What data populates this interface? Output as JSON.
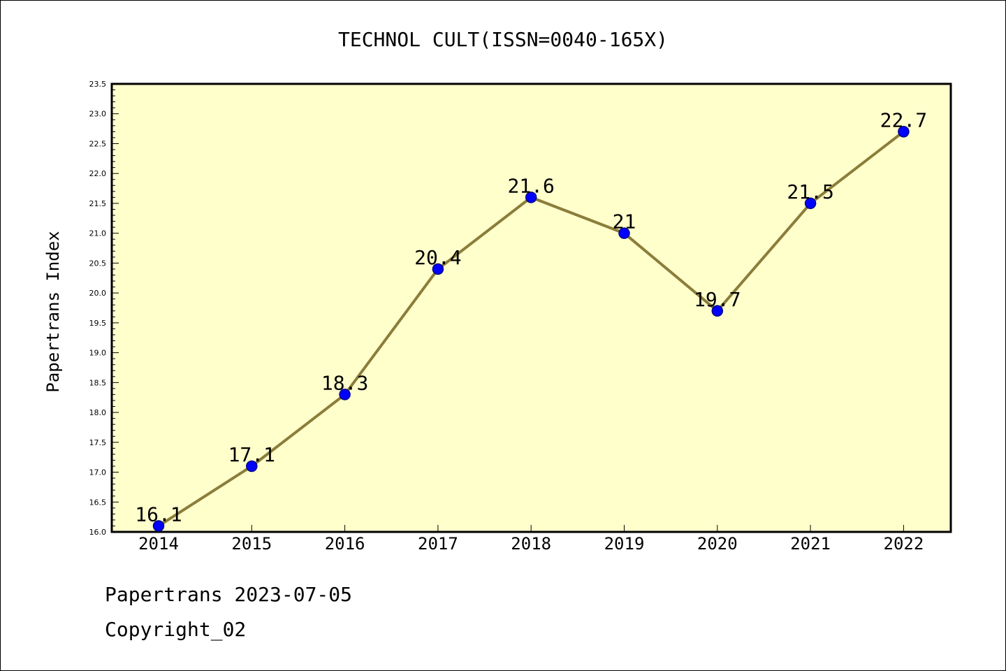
{
  "chart_data": {
    "type": "line",
    "title": "TECHNOL CULT(ISSN=0040-165X)",
    "xlabel": "",
    "ylabel": "Papertrans Index",
    "categories": [
      "2014",
      "2015",
      "2016",
      "2017",
      "2018",
      "2019",
      "2020",
      "2021",
      "2022"
    ],
    "series": [
      {
        "values": [
          16.1,
          17.1,
          18.3,
          20.4,
          21.6,
          21.0,
          19.7,
          21.5,
          22.7
        ]
      }
    ],
    "data_labels": [
      "16.1",
      "17.1",
      "18.3",
      "20.4",
      "21.6",
      "21",
      "19.7",
      "21.5",
      "22.7"
    ],
    "ylim": [
      16.0,
      23.5
    ],
    "y_ticks": [
      "16.0",
      "16.5",
      "17.0",
      "17.5",
      "18.0",
      "18.5",
      "19.0",
      "19.5",
      "20.0",
      "20.5",
      "21.0",
      "21.5",
      "22.0",
      "22.5",
      "23.0",
      "23.5"
    ],
    "grid": false,
    "legend": "none",
    "colors": {
      "plot_background": "#ffffcc",
      "line": "#8b7d3a",
      "marker": "#0000ff",
      "marker_edge": "#00008b"
    }
  },
  "footer": {
    "date_line": "Papertrans 2023-07-05",
    "copyright": "Copyright_02"
  }
}
